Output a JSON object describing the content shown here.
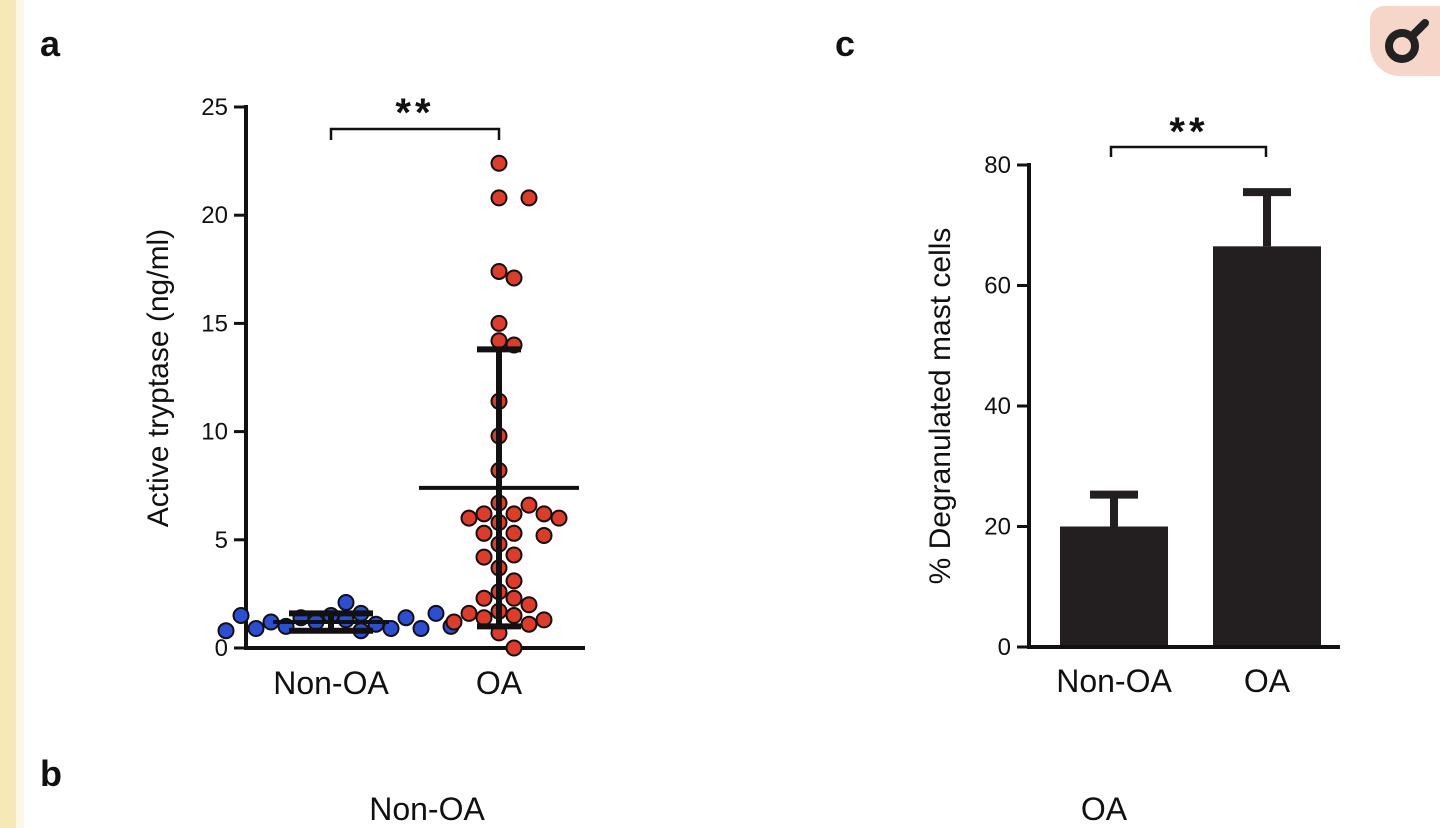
{
  "panels": {
    "a": "a",
    "b": "b",
    "c": "c"
  },
  "panel_b": {
    "left_title": "Non-OA",
    "right_title": "OA"
  },
  "icons": {
    "zoom": "magnifier-icon"
  },
  "chart_data": [
    {
      "type": "scatter",
      "panel": "a",
      "ylabel": "Active tryptase (ng/ml)",
      "ylim": [
        0,
        25
      ],
      "yticks": [
        0,
        5,
        10,
        15,
        20,
        25
      ],
      "categories": [
        "Non-OA",
        "OA"
      ],
      "significance": "**",
      "series": [
        {
          "category": "Non-OA",
          "color": "#2a4fd6",
          "points": [
            1.5,
            1.6,
            1.4,
            1.3,
            1.2,
            2.1,
            1.1,
            1.0,
            0.9,
            0.9,
            0.9,
            0.8,
            0.8,
            1.0,
            1.2,
            1.4,
            1.5,
            1.6
          ],
          "mean": 1.2,
          "sd_upper": 1.6,
          "sd_lower": 0.8
        },
        {
          "category": "OA",
          "color": "#e03a28",
          "points": [
            22.4,
            20.8,
            20.8,
            17.4,
            17.1,
            15.0,
            14.2,
            14.0,
            11.4,
            9.8,
            8.2,
            6.7,
            6.6,
            6.2,
            6.2,
            6.2,
            6.0,
            6.0,
            5.8,
            5.3,
            5.3,
            5.2,
            4.8,
            4.3,
            4.2,
            3.7,
            3.1,
            2.6,
            2.3,
            2.3,
            2.0,
            1.7,
            1.6,
            1.5,
            1.4,
            1.3,
            1.2,
            1.1,
            0.7,
            0.0
          ],
          "mean": 7.4,
          "sd_upper": 13.8,
          "sd_lower": 1.0
        }
      ]
    },
    {
      "type": "bar",
      "panel": "c",
      "ylabel": "% Degranulated mast cells",
      "ylim": [
        0,
        80
      ],
      "yticks": [
        0,
        20,
        40,
        60,
        80
      ],
      "categories": [
        "Non-OA",
        "OA"
      ],
      "values": [
        20,
        66.5
      ],
      "errors": [
        5.3,
        9
      ],
      "color": "#231f20",
      "significance": "**"
    }
  ]
}
